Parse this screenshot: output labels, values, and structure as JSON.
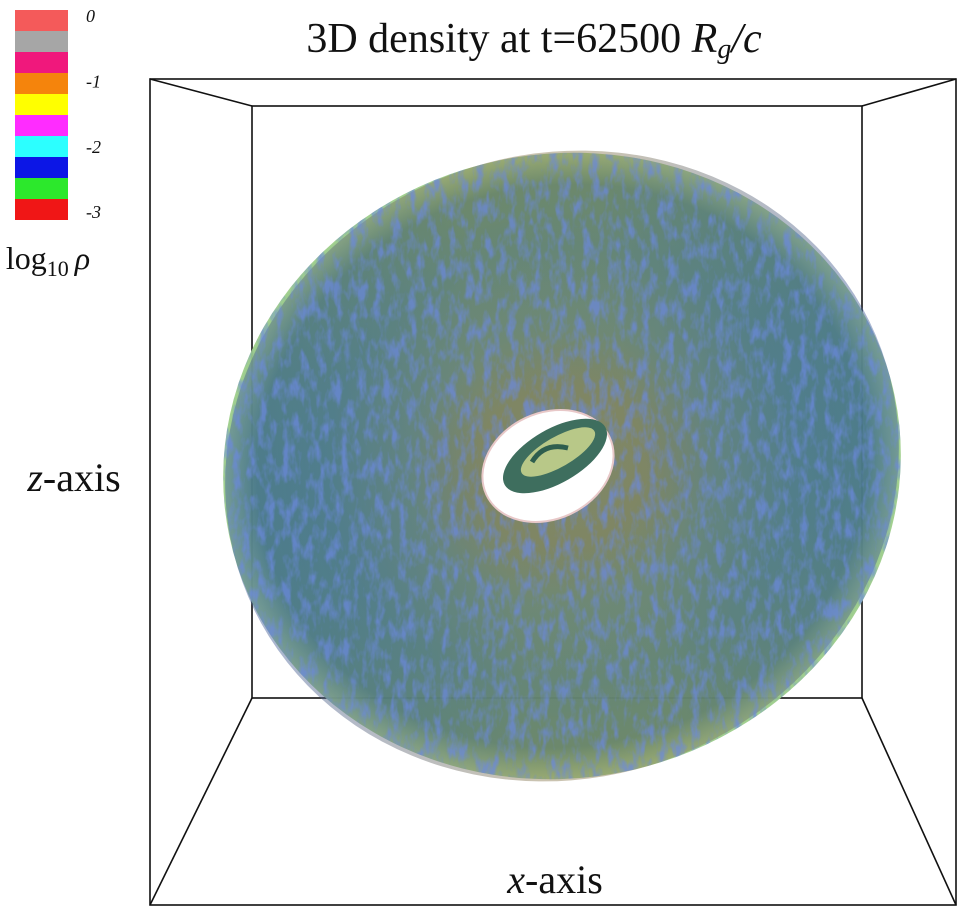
{
  "figure": {
    "title": {
      "text": "3D density at t=62500",
      "symbol": "R",
      "subscript": "g",
      "suffix": "/c"
    },
    "colorbar": {
      "colors": [
        "#f45a5a",
        "#a6a6a6",
        "#f0187c",
        "#f5840c",
        "#ffff00",
        "#ff2cff",
        "#2cffff",
        "#0c16e6",
        "#2ce82c",
        "#f01616"
      ],
      "ticks": [
        0,
        -1,
        -2,
        -3
      ],
      "label": {
        "text": "log",
        "subscript": "10",
        "symbol": "ρ"
      }
    },
    "z_axis_label": {
      "symbol": "z",
      "text": "-axis"
    },
    "x_axis_label": {
      "symbol": "x",
      "text": "-axis"
    }
  }
}
